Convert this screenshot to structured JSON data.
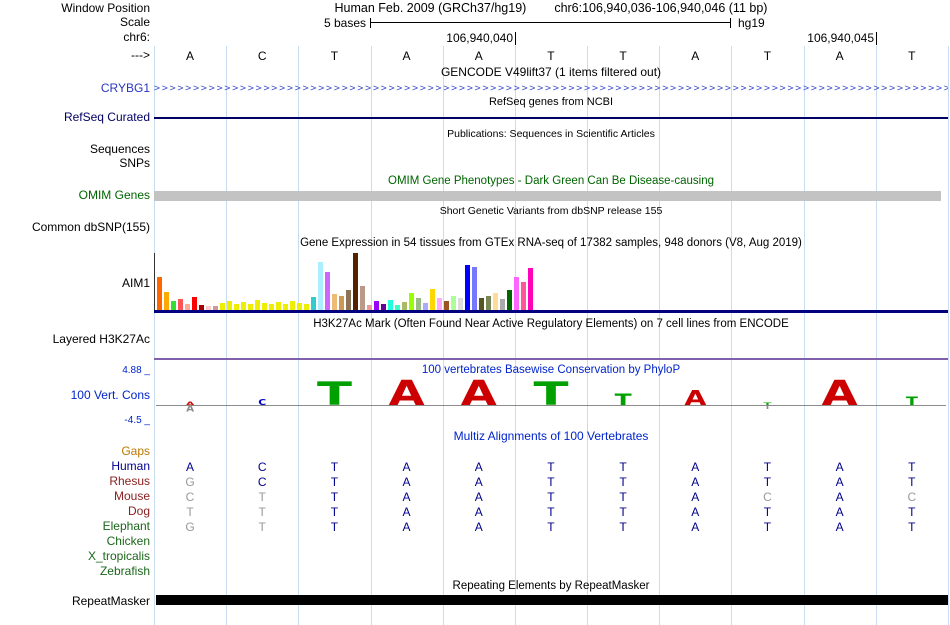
{
  "ui": {
    "colors": {
      "guideline": "#c9ddf0",
      "track_title_blue": "#0024cc",
      "gencode_item": "#2a35c0",
      "refseq_navy": "#000064",
      "omim_green": "#006400",
      "omim_bar_gray": "#c3c3c3",
      "gtex_baseline_navy": "#000080",
      "h3k27ac_purple": "#8060aa",
      "gaps_orange": "#bb7700",
      "match_base": "#00008b",
      "mismatch_base": "#999999",
      "base_colors": {
        "A": "#cc0000",
        "C": "#0000cc",
        "G": "#e0a000",
        "T": "#00a000"
      }
    },
    "header": {
      "window_position_label": "Window Position",
      "assembly_title": "Human Feb. 2009 (GRCh37/hg19)",
      "position_title": "chr6:106,940,036-106,940,046 (11 bp)",
      "scale_label": "Scale",
      "scale_text": "5 bases",
      "assembly_short": "hg19",
      "chrom_label": "chr6:",
      "strand_label": "--->"
    },
    "ruler_ticks": [
      {
        "label": "106,940,040",
        "x": 515
      },
      {
        "label": "106,940,045",
        "x": 876
      }
    ],
    "sequence": [
      "A",
      "C",
      "T",
      "A",
      "A",
      "T",
      "T",
      "A",
      "T",
      "A",
      "T"
    ],
    "tracks": {
      "gencode": {
        "title": "GENCODE V49lift37 (1 items filtered out)",
        "item_label": "CRYBG1"
      },
      "refseq": {
        "title": "RefSeq genes from NCBI",
        "label": "RefSeq Curated"
      },
      "publications": {
        "title": "Publications: Sequences in Scientific Articles",
        "row1": "Sequences",
        "row2": "SNPs"
      },
      "omim": {
        "title": "OMIM Gene Phenotypes - Dark Green Can Be Disease-causing",
        "label": "OMIM Genes"
      },
      "dbsnp": {
        "title": "Short Genetic Variants from dbSNP release 155",
        "label": "Common dbSNP(155)"
      },
      "h3k27ac": {
        "title": "H3K27Ac Mark (Often Found Near Active Regulatory Elements) on 7 cell lines from ENCODE",
        "label": "Layered H3K27Ac"
      },
      "phylop": {
        "title": "100 vertebrates Basewise Conservation by PhyloP",
        "label": "100 Vert. Cons",
        "axis_max": "4.88 _",
        "axis_min": "-4.5 _"
      },
      "multiz": {
        "title": "Multiz Alignments of 100 Vertebrates",
        "gaps_label": "Gaps",
        "species": [
          {
            "name": "Human",
            "color": "#00008b",
            "seq": "ACTAATTATAT"
          },
          {
            "name": "Rhesus",
            "color": "#8b2020",
            "seq": "GCTAATTATAT"
          },
          {
            "name": "Mouse",
            "color": "#8b2020",
            "seq": "CTTAATTACAC"
          },
          {
            "name": "Dog",
            "color": "#8b2020",
            "seq": "TTTAATTATAT"
          },
          {
            "name": "Elephant",
            "color": "#1a661a",
            "seq": "GTTAATTATAT"
          },
          {
            "name": "Chicken",
            "color": "#1a661a",
            "seq": ""
          },
          {
            "name": "X_tropicalis",
            "color": "#1a661a",
            "seq": ""
          },
          {
            "name": "Zebrafish",
            "color": "#1a661a",
            "seq": ""
          }
        ]
      },
      "repeatmasker": {
        "title": "Repeating Elements by RepeatMasker",
        "label": "RepeatMasker"
      }
    }
  },
  "chart_data": [
    {
      "type": "bar",
      "title": "Gene Expression in 54 tissues from GTEx RNA-seq of 17382 samples, 948 donors (V8, Aug 2019)",
      "gene": "AIM1",
      "units": "approx_pixel_height",
      "bars": [
        {
          "c": "#ff6600",
          "h": 33
        },
        {
          "c": "#ffaa00",
          "h": 18
        },
        {
          "c": "#33dd33",
          "h": 9
        },
        {
          "c": "#ff5555",
          "h": 11
        },
        {
          "c": "#ffaa99",
          "h": 6
        },
        {
          "c": "#ff0000",
          "h": 13
        },
        {
          "c": "#aa0000",
          "h": 5
        },
        {
          "c": "#ffcccc",
          "h": 4
        },
        {
          "c": "#cc9999",
          "h": 4
        },
        {
          "c": "#eeee00",
          "h": 7
        },
        {
          "c": "#eeee00",
          "h": 9
        },
        {
          "c": "#eeee00",
          "h": 6
        },
        {
          "c": "#eeee00",
          "h": 8
        },
        {
          "c": "#eeee00",
          "h": 6
        },
        {
          "c": "#eeee00",
          "h": 10
        },
        {
          "c": "#eeee00",
          "h": 7
        },
        {
          "c": "#eeee00",
          "h": 6
        },
        {
          "c": "#eeee00",
          "h": 8
        },
        {
          "c": "#eeee00",
          "h": 6
        },
        {
          "c": "#eeee00",
          "h": 9
        },
        {
          "c": "#eeee00",
          "h": 7
        },
        {
          "c": "#eeee00",
          "h": 6
        },
        {
          "c": "#33cccc",
          "h": 13
        },
        {
          "c": "#aaeeff",
          "h": 48
        },
        {
          "c": "#cc66ff",
          "h": 38
        },
        {
          "c": "#eebb77",
          "h": 16
        },
        {
          "c": "#cc9955",
          "h": 14
        },
        {
          "c": "#8b7355",
          "h": 20
        },
        {
          "c": "#552200",
          "h": 57
        },
        {
          "c": "#bb9988",
          "h": 24
        },
        {
          "c": "#ee9999",
          "h": 5
        },
        {
          "c": "#9900ff",
          "h": 9
        },
        {
          "c": "#660099",
          "h": 6
        },
        {
          "c": "#22ffdd",
          "h": 10
        },
        {
          "c": "#33ffcc",
          "h": 5
        },
        {
          "c": "#aabb66",
          "h": 8
        },
        {
          "c": "#99ff00",
          "h": 17
        },
        {
          "c": "#99bb88",
          "h": 12
        },
        {
          "c": "#aaaaff",
          "h": 7
        },
        {
          "c": "#ffd700",
          "h": 21
        },
        {
          "c": "#ffaaff",
          "h": 12
        },
        {
          "c": "#995522",
          "h": 9
        },
        {
          "c": "#aaff99",
          "h": 14
        },
        {
          "c": "#dddddd",
          "h": 12
        },
        {
          "c": "#0000ff",
          "h": 45
        },
        {
          "c": "#7777ff",
          "h": 43
        },
        {
          "c": "#555522",
          "h": 12
        },
        {
          "c": "#778855",
          "h": 14
        },
        {
          "c": "#ffdd99",
          "h": 17
        },
        {
          "c": "#aaaaaa",
          "h": 11
        },
        {
          "c": "#006600",
          "h": 20
        },
        {
          "c": "#ff66ff",
          "h": 33
        },
        {
          "c": "#ff5599",
          "h": 28
        },
        {
          "c": "#ff00bb",
          "h": 42
        }
      ]
    },
    {
      "type": "logo",
      "title": "100 vertebrates Basewise Conservation by PhyloP",
      "ylim": [
        -4.5,
        4.88
      ],
      "columns": [
        {
          "base": "A",
          "up": 0.4,
          "down": 0.8
        },
        {
          "base": "C",
          "up": 0.7,
          "down": 0
        },
        {
          "base": "T",
          "up": 2.9,
          "down": 0
        },
        {
          "base": "A",
          "up": 3.1,
          "down": 0
        },
        {
          "base": "A",
          "up": 3.1,
          "down": 0
        },
        {
          "base": "T",
          "up": 2.9,
          "down": 0
        },
        {
          "base": "T",
          "up": 1.4,
          "down": 0
        },
        {
          "base": "A",
          "up": 1.8,
          "down": 0
        },
        {
          "base": "T",
          "up": 0.3,
          "down": 0.5
        },
        {
          "base": "A",
          "up": 3.1,
          "down": 0
        },
        {
          "base": "T",
          "up": 1.0,
          "down": 0
        }
      ]
    }
  ]
}
